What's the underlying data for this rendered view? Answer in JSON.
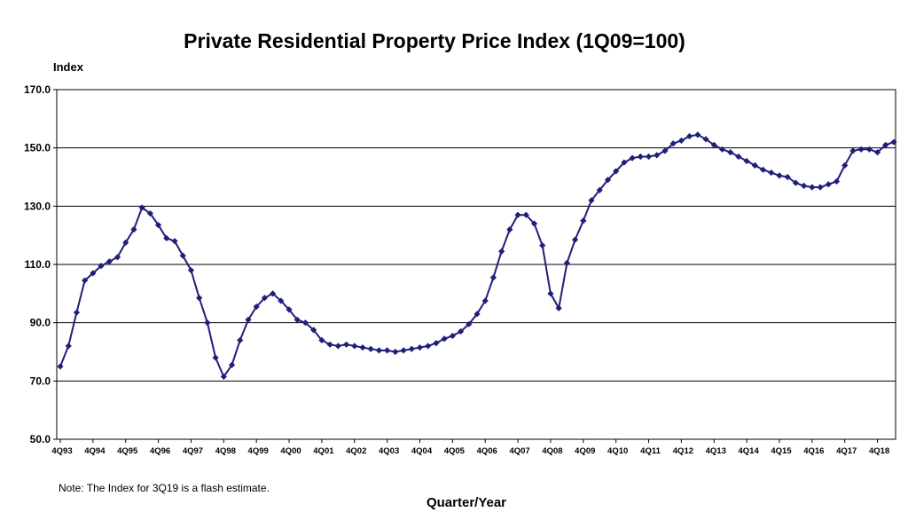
{
  "chart_data": {
    "type": "line",
    "title": "Private Residential Property Price Index (1Q09=100)",
    "ylabel": "Index",
    "xlabel": "Quarter/Year",
    "note": "Note: The Index for 3Q19 is a flash estimate.",
    "ylim": [
      50,
      170
    ],
    "yticks": [
      "50.0",
      "70.0",
      "90.0",
      "110.0",
      "130.0",
      "150.0",
      "170.0"
    ],
    "tick_labels": [
      "4Q93",
      "4Q94",
      "4Q95",
      "4Q96",
      "4Q97",
      "4Q98",
      "4Q99",
      "4Q00",
      "4Q01",
      "4Q02",
      "4Q03",
      "4Q04",
      "4Q05",
      "4Q06",
      "4Q07",
      "4Q08",
      "4Q09",
      "4Q10",
      "4Q11",
      "4Q12",
      "4Q13",
      "4Q14",
      "4Q15",
      "4Q16",
      "4Q17",
      "4Q18"
    ],
    "series_color": "#1f1f7a",
    "series": [
      {
        "name": "Private Residential Property Price Index",
        "start_quarter": "4Q93",
        "end_quarter": "3Q19",
        "values": [
          75.0,
          82.0,
          93.5,
          104.5,
          107.0,
          109.5,
          111.0,
          112.5,
          117.5,
          122.0,
          129.5,
          127.5,
          123.5,
          119.0,
          118.0,
          113.0,
          108.0,
          98.5,
          90.0,
          78.0,
          71.5,
          75.5,
          84.0,
          91.0,
          95.5,
          98.5,
          100.0,
          97.5,
          94.5,
          91.0,
          90.0,
          87.5,
          84.0,
          82.5,
          82.0,
          82.5,
          82.0,
          81.5,
          81.0,
          80.5,
          80.5,
          80.0,
          80.5,
          81.0,
          81.5,
          82.0,
          83.0,
          84.5,
          85.5,
          87.0,
          89.5,
          93.0,
          97.5,
          105.5,
          114.5,
          122.0,
          127.0,
          127.0,
          124.0,
          116.5,
          100.0,
          95.0,
          110.5,
          118.5,
          125.0,
          132.0,
          135.5,
          139.0,
          142.0,
          145.0,
          146.5,
          147.0,
          147.0,
          147.5,
          149.0,
          151.5,
          152.5,
          154.0,
          154.5,
          153.0,
          151.0,
          149.5,
          148.5,
          147.0,
          145.5,
          144.0,
          142.5,
          141.5,
          140.5,
          140.0,
          138.0,
          137.0,
          136.5,
          136.5,
          137.5,
          138.5,
          144.0,
          149.0,
          149.5,
          149.5,
          148.5,
          151.0,
          152.0
        ]
      }
    ],
    "grid": true
  }
}
